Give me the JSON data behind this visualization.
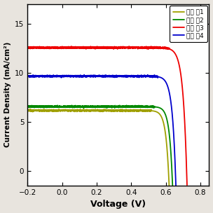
{
  "xlabel": "Voltage (V)",
  "ylabel": "Current Density (mA/cm²)",
  "xlim": [
    -0.2,
    0.85
  ],
  "ylim": [
    -1.5,
    17
  ],
  "xticks": [
    -0.2,
    0.0,
    0.2,
    0.4,
    0.6,
    0.8
  ],
  "yticks": [
    0,
    5,
    10,
    15
  ],
  "curves": [
    {
      "label": "화합 물1",
      "color": "#a0a000",
      "jsc": 6.15,
      "voc": 0.615,
      "nVt": 0.018
    },
    {
      "label": "화합 물2",
      "color": "#008800",
      "jsc": 6.55,
      "voc": 0.635,
      "nVt": 0.018
    },
    {
      "label": "화합 물3",
      "color": "#ee0000",
      "jsc": 12.55,
      "voc": 0.72,
      "nVt": 0.022
    },
    {
      "label": "화합 물4",
      "color": "#0000cc",
      "jsc": 9.65,
      "voc": 0.655,
      "nVt": 0.02
    }
  ],
  "figure_bg": "#e8e4de",
  "plot_bg": "#ffffff",
  "legend_fontsize": 6.5,
  "xlabel_fontsize": 9,
  "ylabel_fontsize": 7.5,
  "tick_labelsize": 7.5,
  "linewidth": 1.3
}
